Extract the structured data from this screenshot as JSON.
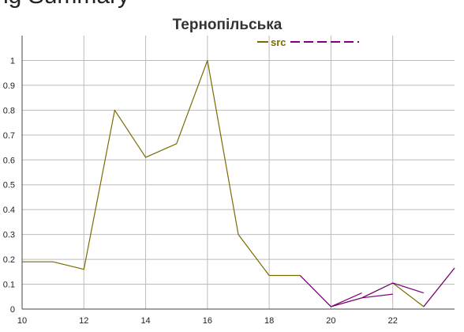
{
  "page": {
    "heading": "ng Summary"
  },
  "colors": {
    "src": "#7a6a00",
    "forecast": "#800080",
    "grid": "#bbbbbb",
    "axis": "#444444",
    "text": "#333333"
  },
  "chart_data": {
    "type": "line",
    "title": "Тернопільська",
    "xlabel": "",
    "ylabel": "",
    "xlim": [
      10,
      24
    ],
    "ylim": [
      0,
      1.1
    ],
    "x_ticks": [
      10,
      12,
      14,
      16,
      18,
      20,
      22
    ],
    "y_ticks": [
      0,
      0.1,
      0.2,
      0.3,
      0.4,
      0.5,
      0.6,
      0.7,
      0.8,
      0.9,
      1
    ],
    "y_tick_labels": [
      "0",
      "0.1",
      "0.2",
      "0.3",
      "0.4",
      "0.5",
      "0.6",
      "0.7",
      "0.8",
      "0.9",
      "1"
    ],
    "grid": true,
    "legend_position": "top-right",
    "series": [
      {
        "name": "src",
        "style": "solid",
        "color": "#7a6a00",
        "x": [
          10,
          11,
          12,
          13,
          14,
          15,
          16,
          17,
          18,
          19,
          20,
          21,
          22,
          23,
          24
        ],
        "y": [
          0.19,
          0.19,
          0.16,
          0.8,
          0.61,
          0.665,
          1.0,
          0.3,
          0.135,
          0.135,
          0.01,
          0.045,
          0.105,
          0.01,
          0.165
        ]
      },
      {
        "name": "",
        "style": "dashed",
        "color": "#800080",
        "x": [
          19,
          20,
          21
        ],
        "y": [
          0.135,
          0.01,
          0.065
        ]
      },
      {
        "name": "",
        "style": "dashed",
        "color": "#800080",
        "x": [
          20,
          21,
          22
        ],
        "y": [
          0.01,
          0.045,
          0.06
        ]
      },
      {
        "name": "",
        "style": "dashed",
        "color": "#800080",
        "x": [
          21,
          22,
          23
        ],
        "y": [
          0.045,
          0.105,
          0.065
        ]
      },
      {
        "name": "",
        "style": "dashed",
        "color": "#800080",
        "x": [
          23,
          24
        ],
        "y": [
          0.01,
          0.165
        ]
      }
    ]
  }
}
